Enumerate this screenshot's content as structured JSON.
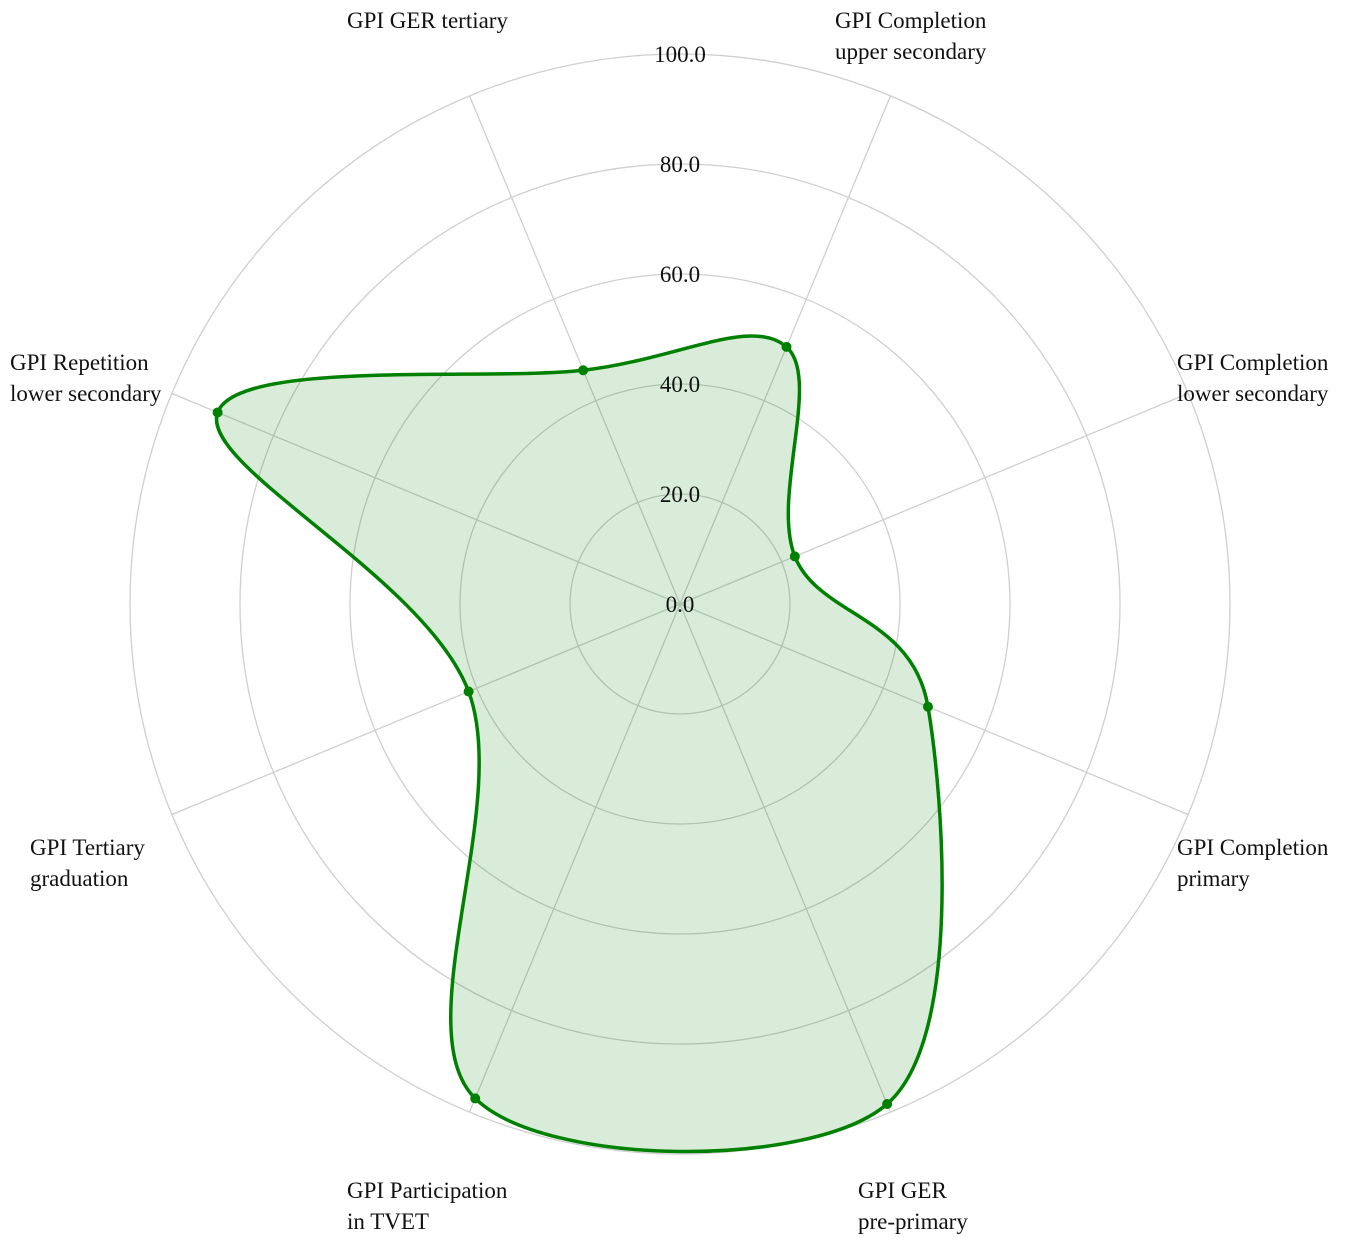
{
  "chart_data": {
    "type": "radar",
    "categories": [
      "GPI Completion\nupper secondary",
      "GPI Completion\nlower secondary",
      "GPI Completion\nprimary",
      "GPI GER\npre-primary",
      "GPI Participation\nin TVET",
      "GPI Tertiary\ngraduation",
      "GPI Repetition\nlower secondary",
      "GPI GER tertiary"
    ],
    "values": [
      50.6,
      22.6,
      48.8,
      98.4,
      97.3,
      41.6,
      91,
      46
    ],
    "color": "#008000",
    "ylim": [
      0,
      100
    ],
    "yticks": [
      {
        "value": 0,
        "label": "0.0"
      },
      {
        "value": 20,
        "label": "20.0"
      },
      {
        "value": 40,
        "label": "40.0"
      },
      {
        "value": 60,
        "label": "60.0"
      },
      {
        "value": 80,
        "label": "80.0"
      },
      {
        "value": 100,
        "label": "100.0"
      }
    ],
    "grid": true
  }
}
